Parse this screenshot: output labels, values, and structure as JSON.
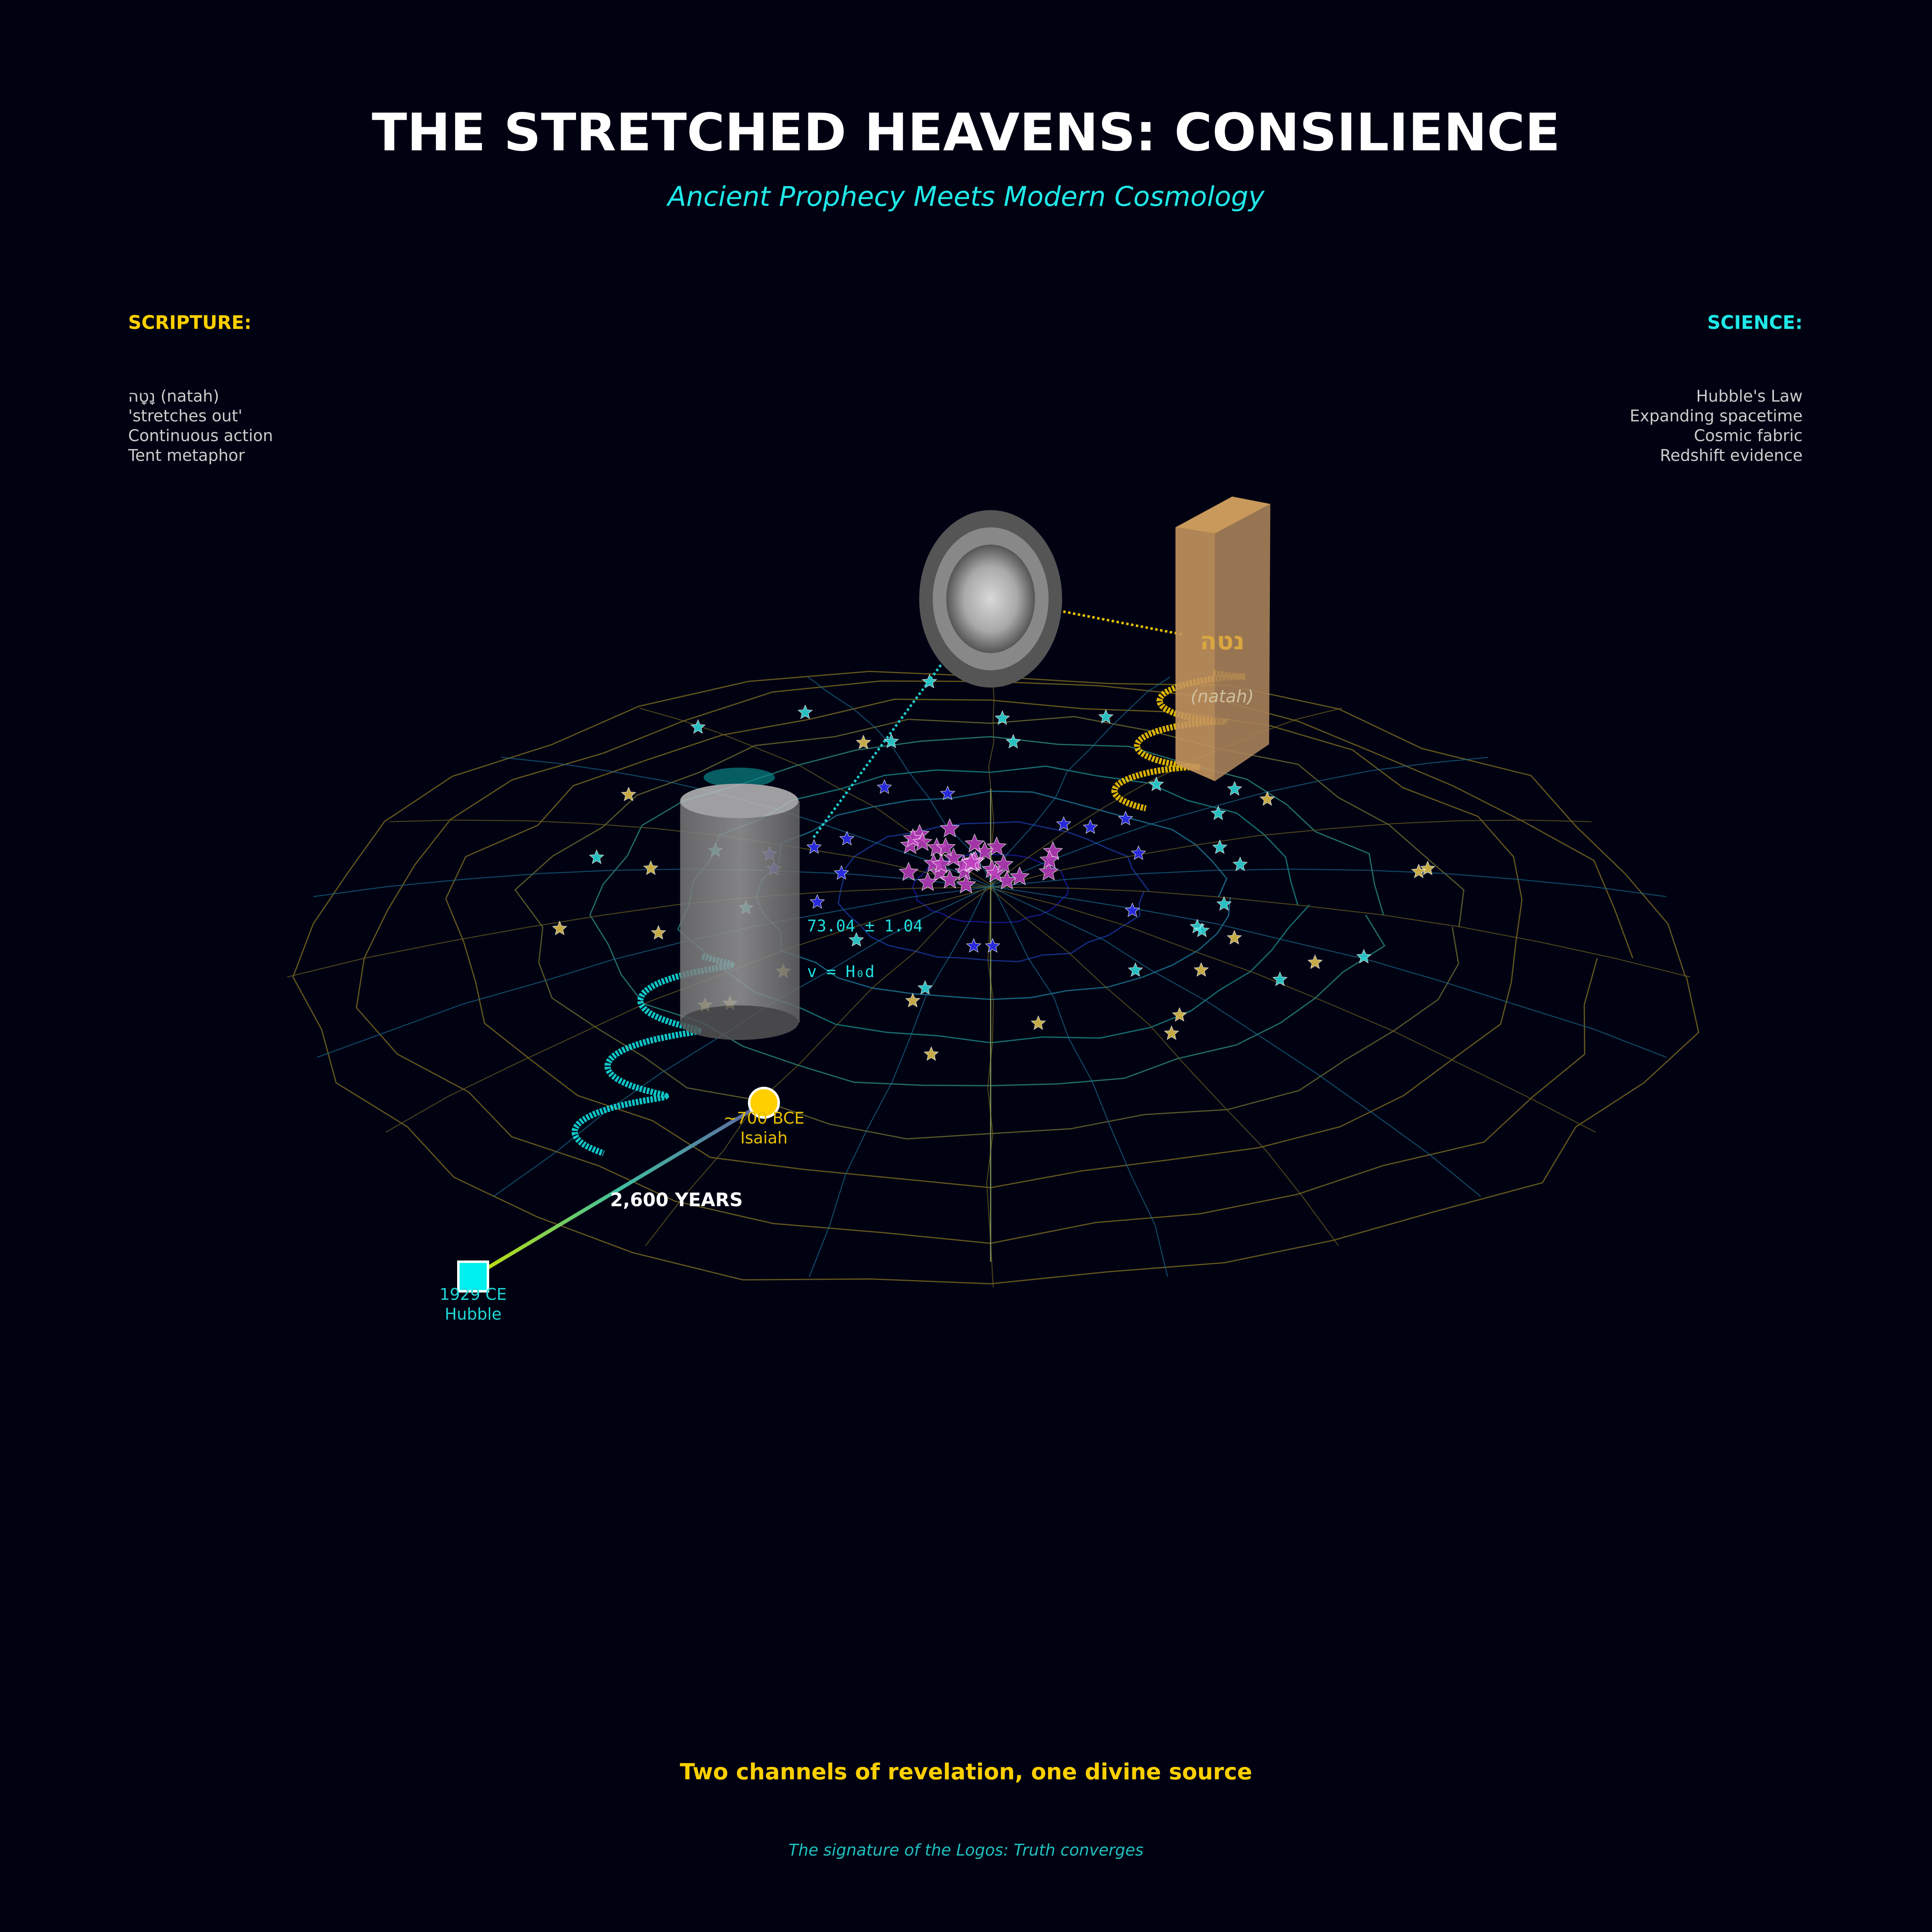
{
  "header": {
    "title": "THE STRETCHED HEAVENS: CONSILIENCE",
    "subtitle": "Ancient Prophecy Meets Modern Cosmology"
  },
  "scripture": {
    "heading": "SCRIPTURE:",
    "lines": [
      "נָטָה (natah)",
      "'stretches out'",
      "Continuous action",
      "Tent metaphor"
    ]
  },
  "science": {
    "heading": "SCIENCE:",
    "lines": [
      "Hubble's Law",
      "Expanding spacetime",
      "Cosmic fabric",
      "Redshift evidence"
    ]
  },
  "scene": {
    "hebrew_word": "נטה",
    "transliteration": "(natah)",
    "hubble_constant": "73.04 ± 1.04",
    "hubble_law": "v = H₀d"
  },
  "timeline": {
    "isaiah_date": "~700 BCE",
    "isaiah_name": "Isaiah",
    "hubble_date": "1929 CE",
    "hubble_name": "Hubble",
    "span": "2,600 YEARS"
  },
  "footer": {
    "tagline": "Two channels of revelation, one divine source",
    "note": "The signature of the Logos: Truth converges"
  }
}
